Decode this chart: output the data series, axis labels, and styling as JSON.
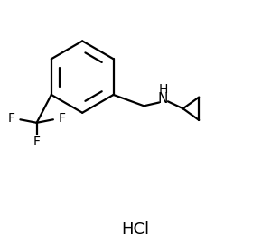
{
  "background_color": "#ffffff",
  "line_color": "#000000",
  "line_width": 1.6,
  "fig_width": 3.0,
  "fig_height": 2.79,
  "dpi": 100,
  "hcl_text": "HCl",
  "f_label": "F",
  "nh_h": "H",
  "nh_n": "N",
  "font_size": 10,
  "hcl_font_size": 13,
  "label_font_size": 10
}
